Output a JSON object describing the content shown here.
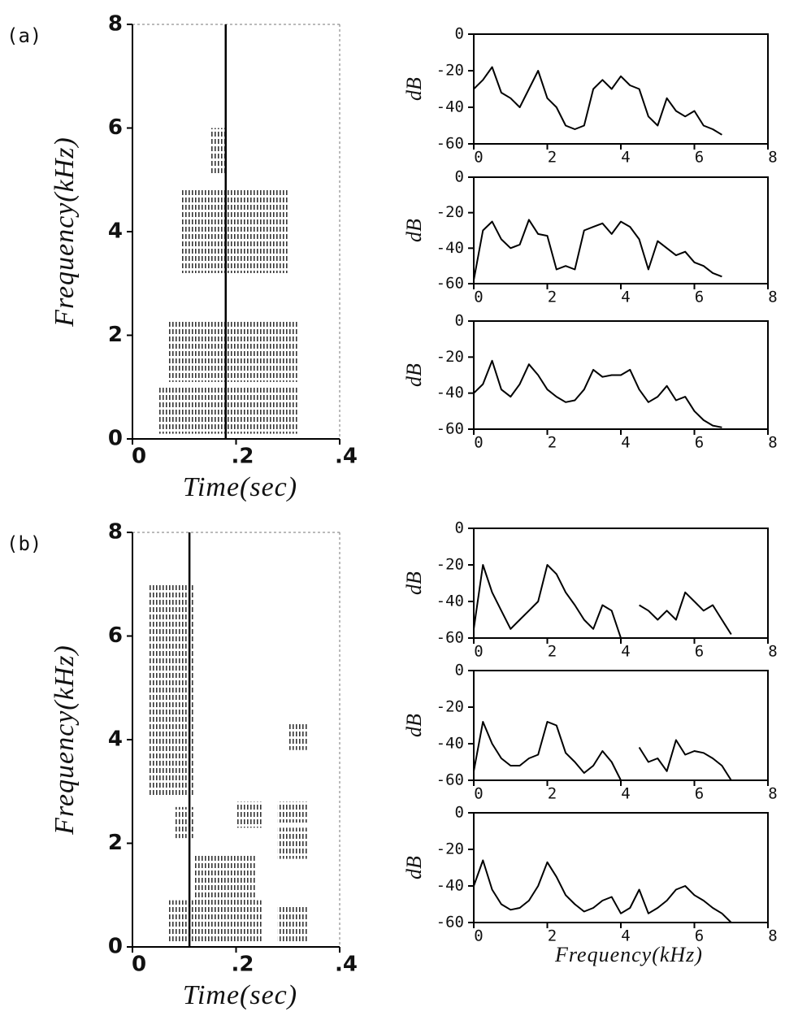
{
  "chart_data": [
    {
      "type": "spectrogram",
      "panel_label": "(a)",
      "xlabel": "Time(sec)",
      "ylabel": "Frequency(kHz)",
      "xlim": [
        0,
        0.4
      ],
      "ylim": [
        0,
        8
      ],
      "xticks": [
        0,
        {
          "value": 0.2,
          "label": ".2"
        },
        {
          "value": 0.4,
          "label": ".4"
        }
      ],
      "yticks": [
        0,
        2,
        4,
        6,
        8
      ],
      "marker_x": 0.18,
      "bands": [
        {
          "x": [
            0.05,
            0.32
          ],
          "y": [
            0.1,
            1.0
          ]
        },
        {
          "x": [
            0.07,
            0.32
          ],
          "y": [
            1.1,
            2.3
          ]
        },
        {
          "x": [
            0.095,
            0.3
          ],
          "y": [
            3.2,
            4.8
          ]
        },
        {
          "x": [
            0.15,
            0.18
          ],
          "y": [
            5.1,
            6.0
          ]
        }
      ]
    },
    {
      "type": "line",
      "ylabel": "dB",
      "xlim": [
        0,
        8
      ],
      "ylim": [
        -60,
        0
      ],
      "xticks": [
        0,
        2,
        4,
        6,
        8
      ],
      "yticks": [
        0,
        -20,
        -40,
        -60
      ],
      "x": [
        0,
        0.25,
        0.5,
        0.75,
        1,
        1.25,
        1.5,
        1.75,
        2,
        2.25,
        2.5,
        2.75,
        3,
        3.25,
        3.5,
        3.75,
        4,
        4.25,
        4.5,
        4.75,
        5,
        5.25,
        5.5,
        5.75,
        6,
        6.25,
        6.5,
        6.75
      ],
      "values": [
        -30,
        -25,
        -18,
        -32,
        -35,
        -40,
        -30,
        -20,
        -35,
        -40,
        -50,
        -52,
        -50,
        -30,
        -25,
        -30,
        -23,
        -28,
        -30,
        -45,
        -50,
        -35,
        -42,
        -45,
        -42,
        -50,
        -52,
        -55
      ]
    },
    {
      "type": "line",
      "ylabel": "dB",
      "xlim": [
        0,
        8
      ],
      "ylim": [
        -60,
        0
      ],
      "xticks": [
        0,
        2,
        4,
        6,
        8
      ],
      "yticks": [
        0,
        -20,
        -40,
        -60
      ],
      "x": [
        0,
        0.25,
        0.5,
        0.75,
        1,
        1.25,
        1.5,
        1.75,
        2,
        2.25,
        2.5,
        2.75,
        3,
        3.25,
        3.5,
        3.75,
        4,
        4.25,
        4.5,
        4.75,
        5,
        5.25,
        5.5,
        5.75,
        6,
        6.25,
        6.5,
        6.75
      ],
      "values": [
        -58,
        -30,
        -25,
        -35,
        -40,
        -38,
        -24,
        -32,
        -33,
        -52,
        -50,
        -52,
        -30,
        -28,
        -26,
        -32,
        -25,
        -28,
        -35,
        -52,
        -36,
        -40,
        -44,
        -42,
        -48,
        -50,
        -54,
        -56
      ]
    },
    {
      "type": "line",
      "ylabel": "dB",
      "xlim": [
        0,
        8
      ],
      "ylim": [
        -60,
        0
      ],
      "xticks": [
        0,
        2,
        4,
        6,
        8
      ],
      "yticks": [
        0,
        -20,
        -40,
        -60
      ],
      "x": [
        0,
        0.25,
        0.5,
        0.75,
        1,
        1.25,
        1.5,
        1.75,
        2,
        2.25,
        2.5,
        2.75,
        3,
        3.25,
        3.5,
        3.75,
        4,
        4.25,
        4.5,
        4.75,
        5,
        5.25,
        5.5,
        5.75,
        6,
        6.25,
        6.5,
        6.75
      ],
      "values": [
        -40,
        -35,
        -22,
        -38,
        -42,
        -35,
        -24,
        -30,
        -38,
        -42,
        -45,
        -44,
        -38,
        -27,
        -31,
        -30,
        -30,
        -27,
        -38,
        -45,
        -42,
        -36,
        -44,
        -42,
        -50,
        -55,
        -58,
        -59
      ]
    },
    {
      "type": "spectrogram",
      "panel_label": "(b)",
      "xlabel": "Time(sec)",
      "ylabel": "Frequency(kHz)",
      "xlim": [
        0,
        0.4
      ],
      "ylim": [
        0,
        8
      ],
      "xticks": [
        0,
        {
          "value": 0.2,
          "label": ".2"
        },
        {
          "value": 0.4,
          "label": ".4"
        }
      ],
      "yticks": [
        0,
        2,
        4,
        6,
        8
      ],
      "marker_x": 0.11,
      "bands": [
        {
          "x": [
            0.07,
            0.25
          ],
          "y": [
            0.1,
            0.9
          ]
        },
        {
          "x": [
            0.28,
            0.34
          ],
          "y": [
            0.1,
            0.8
          ]
        },
        {
          "x": [
            0.08,
            0.12
          ],
          "y": [
            2.1,
            2.7
          ]
        },
        {
          "x": [
            0.12,
            0.24
          ],
          "y": [
            0.9,
            1.8
          ]
        },
        {
          "x": [
            0.2,
            0.25
          ],
          "y": [
            2.3,
            2.8
          ]
        },
        {
          "x": [
            0.28,
            0.34
          ],
          "y": [
            1.7,
            2.3
          ]
        },
        {
          "x": [
            0.28,
            0.34
          ],
          "y": [
            2.4,
            2.8
          ]
        },
        {
          "x": [
            0.3,
            0.34
          ],
          "y": [
            3.8,
            4.3
          ]
        },
        {
          "x": [
            0.03,
            0.12
          ],
          "y": [
            2.9,
            7.0
          ]
        }
      ]
    },
    {
      "type": "line",
      "ylabel": "dB",
      "xlim": [
        0,
        8
      ],
      "ylim": [
        -60,
        0
      ],
      "xticks": [
        0,
        2,
        4,
        6,
        8
      ],
      "yticks": [
        0,
        -20,
        -40,
        -60
      ],
      "x": [
        0,
        0.25,
        0.5,
        0.75,
        1,
        1.25,
        1.5,
        1.75,
        2,
        2.25,
        2.5,
        2.75,
        3,
        3.25,
        3.5,
        3.75,
        4,
        4.25,
        4.5,
        4.75,
        5,
        5.25,
        5.5,
        5.75,
        6,
        6.25,
        6.5,
        6.75,
        7
      ],
      "values": [
        -55,
        -20,
        -35,
        -45,
        -55,
        -50,
        -45,
        -40,
        -20,
        -25,
        -35,
        -42,
        -50,
        -55,
        -42,
        -45,
        -60,
        null,
        -42,
        -45,
        -50,
        -45,
        -50,
        -35,
        -40,
        -45,
        -42,
        -50,
        -58
      ]
    },
    {
      "type": "line",
      "ylabel": "dB",
      "xlim": [
        0,
        8
      ],
      "ylim": [
        -60,
        0
      ],
      "xticks": [
        0,
        2,
        4,
        6,
        8
      ],
      "yticks": [
        0,
        -20,
        -40,
        -60
      ],
      "x": [
        0,
        0.25,
        0.5,
        0.75,
        1,
        1.25,
        1.5,
        1.75,
        2,
        2.25,
        2.5,
        2.75,
        3,
        3.25,
        3.5,
        3.75,
        4,
        4.25,
        4.5,
        4.75,
        5,
        5.25,
        5.5,
        5.75,
        6,
        6.25,
        6.5,
        6.75,
        7
      ],
      "values": [
        -55,
        -28,
        -40,
        -48,
        -52,
        -52,
        -48,
        -46,
        -28,
        -30,
        -45,
        -50,
        -56,
        -52,
        -44,
        -50,
        -60,
        null,
        -42,
        -50,
        -48,
        -55,
        -38,
        -46,
        -44,
        -45,
        -48,
        -52,
        -60
      ]
    },
    {
      "type": "line",
      "ylabel": "dB",
      "xlabel": "Frequency(kHz)",
      "xlim": [
        0,
        8
      ],
      "ylim": [
        -60,
        0
      ],
      "xticks": [
        0,
        2,
        4,
        6,
        8
      ],
      "yticks": [
        0,
        -20,
        -40,
        -60
      ],
      "x": [
        0,
        0.25,
        0.5,
        0.75,
        1,
        1.25,
        1.5,
        1.75,
        2,
        2.25,
        2.5,
        2.75,
        3,
        3.25,
        3.5,
        3.75,
        4,
        4.25,
        4.5,
        4.75,
        5,
        5.25,
        5.5,
        5.75,
        6,
        6.25,
        6.5,
        6.75,
        7
      ],
      "values": [
        -40,
        -26,
        -42,
        -50,
        -53,
        -52,
        -48,
        -40,
        -27,
        -35,
        -45,
        -50,
        -54,
        -52,
        -48,
        -46,
        -55,
        -52,
        -42,
        -55,
        -52,
        -48,
        -42,
        -40,
        -45,
        -48,
        -52,
        -55,
        -60
      ]
    }
  ]
}
